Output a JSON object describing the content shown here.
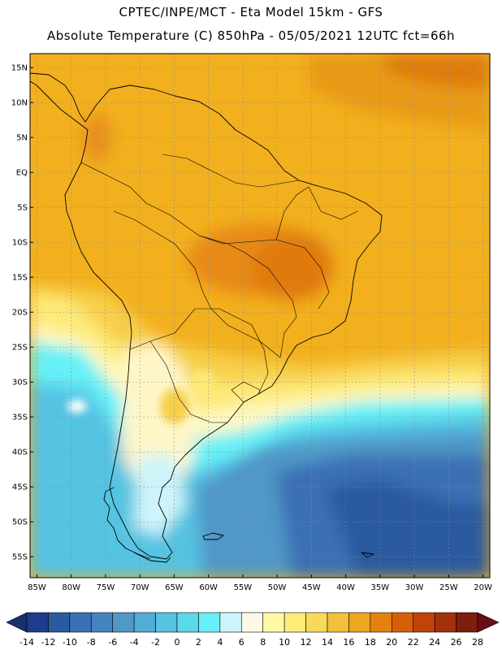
{
  "header": {
    "line1": "CPTEC/INPE/MCT -  Eta Model 15km - GFS",
    "line2": "Absolute Temperature (C) 850hPa - 05/05/2021 12UTC fct=66h"
  },
  "map": {
    "lon_range": [
      -86,
      -19
    ],
    "lat_range": [
      -58,
      17
    ],
    "lat_ticks": [
      "15N",
      "10N",
      "5N",
      "EQ",
      "5S",
      "10S",
      "15S",
      "20S",
      "25S",
      "30S",
      "35S",
      "40S",
      "45S",
      "50S",
      "55S"
    ],
    "lon_ticks": [
      "85W",
      "80W",
      "75W",
      "70W",
      "65W",
      "60W",
      "55W",
      "50W",
      "45W",
      "40W",
      "35W",
      "30W",
      "25W",
      "20W"
    ],
    "grid": true
  },
  "colorbar": {
    "labels": [
      "-14",
      "-12",
      "-10",
      "-8",
      "-6",
      "-4",
      "-2",
      "0",
      "2",
      "4",
      "6",
      "8",
      "10",
      "12",
      "14",
      "16",
      "18",
      "20",
      "22",
      "24",
      "26",
      "28"
    ],
    "colors": [
      "#1e3c8c",
      "#2a5aa0",
      "#3a70b4",
      "#4684bf",
      "#4f98c8",
      "#52acd6",
      "#55c3e2",
      "#5ad8ec",
      "#66f0f8",
      "#cdf4fa",
      "#fff8e6",
      "#fff9a5",
      "#fdec78",
      "#f9d95a",
      "#f2c03a",
      "#eea61e",
      "#e48210",
      "#d85f0a",
      "#c0440a",
      "#a4300c",
      "#7e1e0c"
    ],
    "under_color": "#1a2f6e",
    "over_color": "#6a0d18"
  }
}
